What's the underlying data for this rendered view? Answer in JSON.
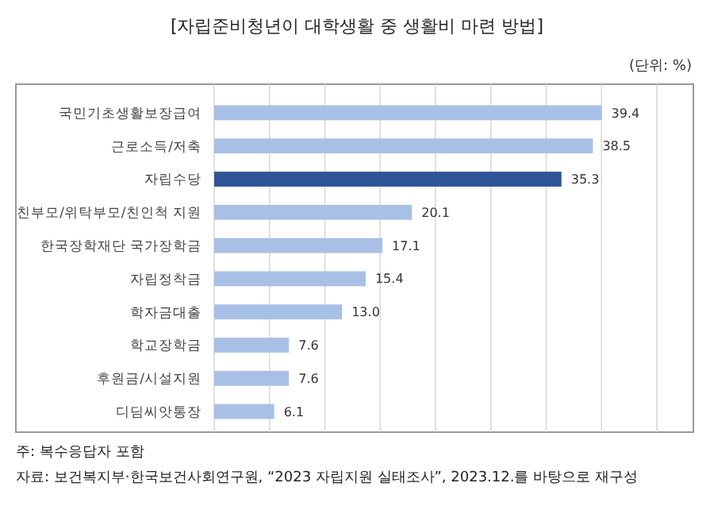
{
  "chart_data": {
    "type": "bar",
    "orientation": "horizontal",
    "title": "[자립준비청년이 대학생활 중 생활비 마련 방법]",
    "subtitle": "(단위: %)",
    "categories": [
      "국민기초생활보장급여",
      "근로소득/저축",
      "자립수당",
      "친부모/위탁부모/친인척 지원",
      "한국장학재단 국가장학금",
      "자립정착금",
      "학자금대출",
      "학교장학금",
      "후원금/시설지원",
      "디딤씨앗통장"
    ],
    "values": [
      39.4,
      38.5,
      35.3,
      20.1,
      17.1,
      15.4,
      13.0,
      7.6,
      7.6,
      6.1
    ],
    "value_labels": [
      "39.4",
      "38.5",
      "35.3",
      "20.1",
      "17.1",
      "15.4",
      "13.0",
      "7.6",
      "7.6",
      "6.1"
    ],
    "colors": [
      "#a9c0e6",
      "#a9c0e6",
      "#2f5597",
      "#a9c0e6",
      "#a9c0e6",
      "#a9c0e6",
      "#a9c0e6",
      "#a9c0e6",
      "#a9c0e6",
      "#a9c0e6"
    ],
    "xlim": [
      0,
      45
    ],
    "xticks": [
      {
        "value": 0,
        "label": null
      },
      {
        "value": 5.625,
        "label": null
      },
      {
        "value": 11.25,
        "label": null
      },
      {
        "value": 16.875,
        "label": null
      },
      {
        "value": 22.5,
        "label": null
      },
      {
        "value": 28.125,
        "label": null
      },
      {
        "value": 33.75,
        "label": null
      },
      {
        "value": 39.375,
        "label": null
      },
      {
        "value": 45,
        "label": null
      }
    ],
    "grid": "x",
    "tick_labels": "y",
    "annotations": [
      "주: 복수응답자 포함",
      "자료: 보건복지부·한국보건사회연구원, “2023 자립지원 실태조사”, 2023.12.를 바탕으로 재구성"
    ]
  }
}
